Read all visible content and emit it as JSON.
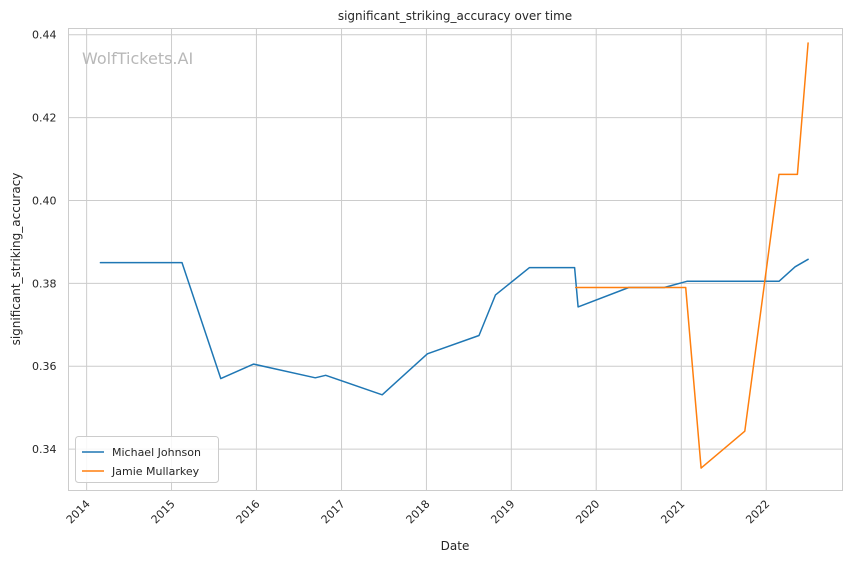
{
  "chart_data": {
    "type": "line",
    "title": "significant_striking_accuracy over time",
    "xlabel": "Date",
    "ylabel": "significant_striking_accuracy",
    "watermark": "WolfTickets.AI",
    "grid": true,
    "legend_position": "lower-left",
    "xlim": [
      "2013-10-15",
      "2022-11-25"
    ],
    "ylim": [
      0.33,
      0.4415
    ],
    "x_ticks": [
      "2014",
      "2015",
      "2016",
      "2017",
      "2018",
      "2019",
      "2020",
      "2021",
      "2022"
    ],
    "y_ticks": [
      "0.34",
      "0.36",
      "0.38",
      "0.40",
      "0.42",
      "0.44"
    ],
    "series": [
      {
        "name": "Michael Johnson",
        "color": "#1f77b4",
        "points": [
          [
            "2014-03-01",
            0.385
          ],
          [
            "2015-02-15",
            0.385
          ],
          [
            "2015-08-01",
            0.357
          ],
          [
            "2015-12-20",
            0.3605
          ],
          [
            "2016-09-10",
            0.3572
          ],
          [
            "2016-10-25",
            0.3578
          ],
          [
            "2017-06-25",
            0.3531
          ],
          [
            "2018-01-05",
            0.363
          ],
          [
            "2018-08-15",
            0.3674
          ],
          [
            "2018-10-25",
            0.3772
          ],
          [
            "2019-03-20",
            0.3838
          ],
          [
            "2019-09-30",
            0.3838
          ],
          [
            "2019-10-15",
            0.3743
          ],
          [
            "2020-05-20",
            0.379
          ],
          [
            "2020-10-20",
            0.379
          ],
          [
            "2021-01-25",
            0.3805
          ],
          [
            "2022-02-25",
            0.3805
          ],
          [
            "2022-05-05",
            0.384
          ],
          [
            "2022-06-30",
            0.3858
          ]
        ]
      },
      {
        "name": "Jamie Mullarkey",
        "color": "#ff7f0e",
        "points": [
          [
            "2019-10-05",
            0.379
          ],
          [
            "2021-01-20",
            0.379
          ],
          [
            "2021-03-27",
            0.3354
          ],
          [
            "2021-10-01",
            0.3443
          ],
          [
            "2022-02-25",
            0.4063
          ],
          [
            "2022-05-15",
            0.4063
          ],
          [
            "2022-06-30",
            0.438
          ]
        ]
      }
    ]
  }
}
